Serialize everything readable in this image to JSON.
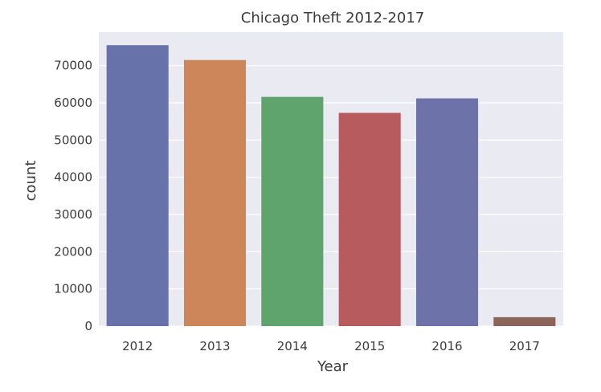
{
  "chart_data": {
    "type": "bar",
    "title": "Chicago Theft 2012-2017",
    "xlabel": "Year",
    "ylabel": "count",
    "categories": [
      "2012",
      "2013",
      "2014",
      "2015",
      "2016",
      "2017"
    ],
    "values": [
      75500,
      71500,
      61600,
      57300,
      61200,
      2400
    ],
    "ylim": [
      0,
      79000
    ],
    "yticks": [
      0,
      10000,
      20000,
      30000,
      40000,
      50000,
      60000,
      70000
    ],
    "grid": true,
    "colors": [
      "#6872aa",
      "#cc8659",
      "#5ea46c",
      "#b85b5e",
      "#6d73a8",
      "#8b655b"
    ],
    "background": "#eaeaf2"
  }
}
